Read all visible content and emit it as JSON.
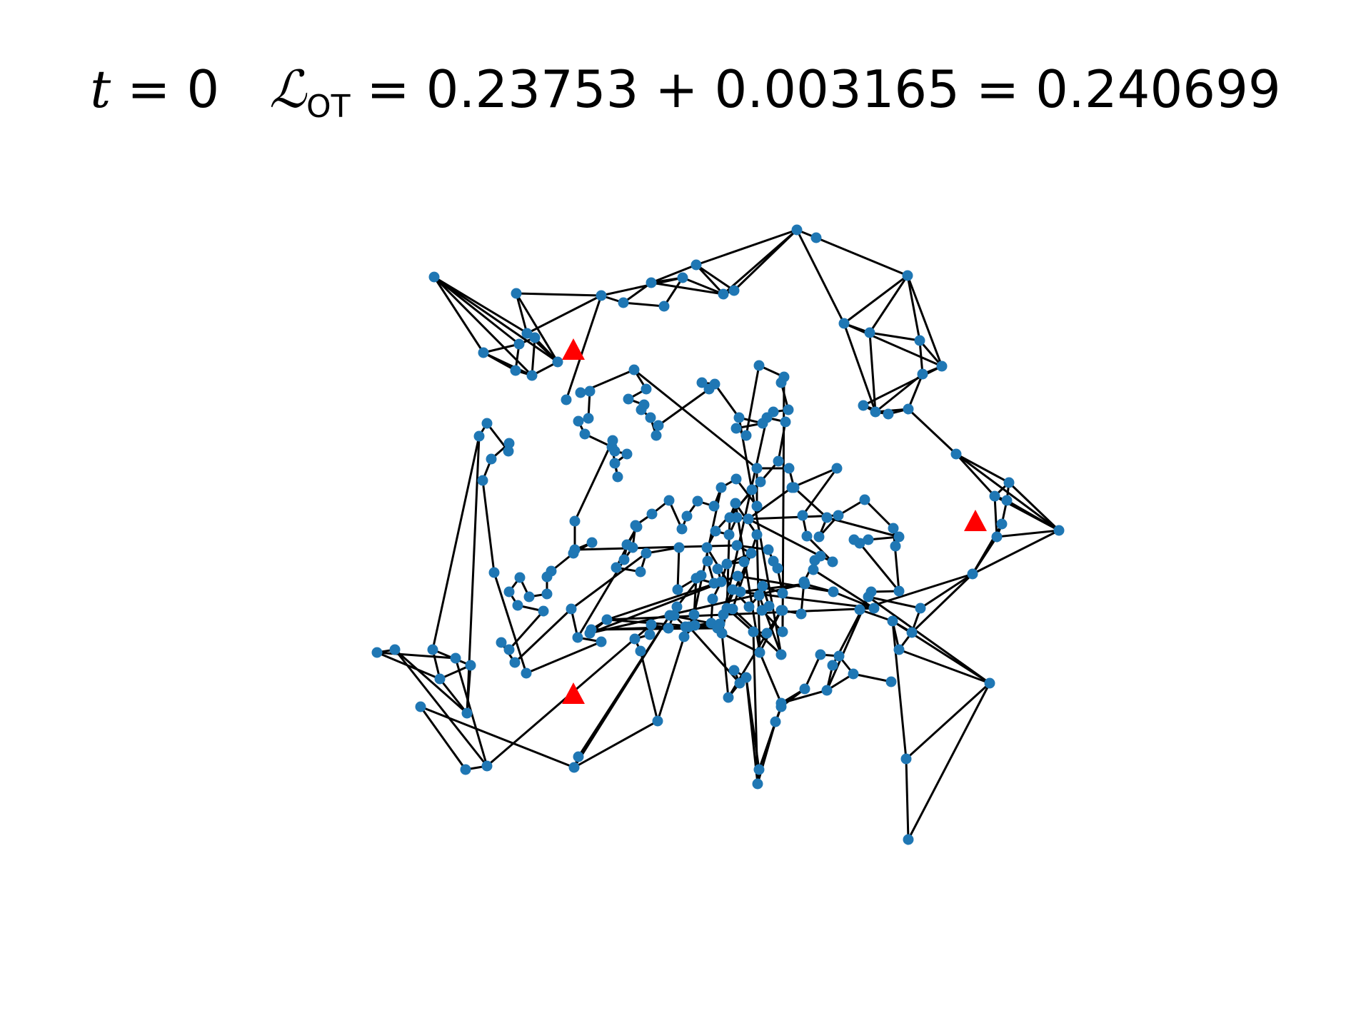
{
  "title": {
    "time_var": "t",
    "time_value": "0",
    "loss_symbol": "ℒ",
    "loss_subscript": "OT",
    "term_1": "0.23753",
    "term_2": "0.003165",
    "total": "0.240699"
  },
  "colors": {
    "node": "#1f77b4",
    "edge": "#000000",
    "marker": "#ff0000",
    "background": "#ffffff"
  }
}
